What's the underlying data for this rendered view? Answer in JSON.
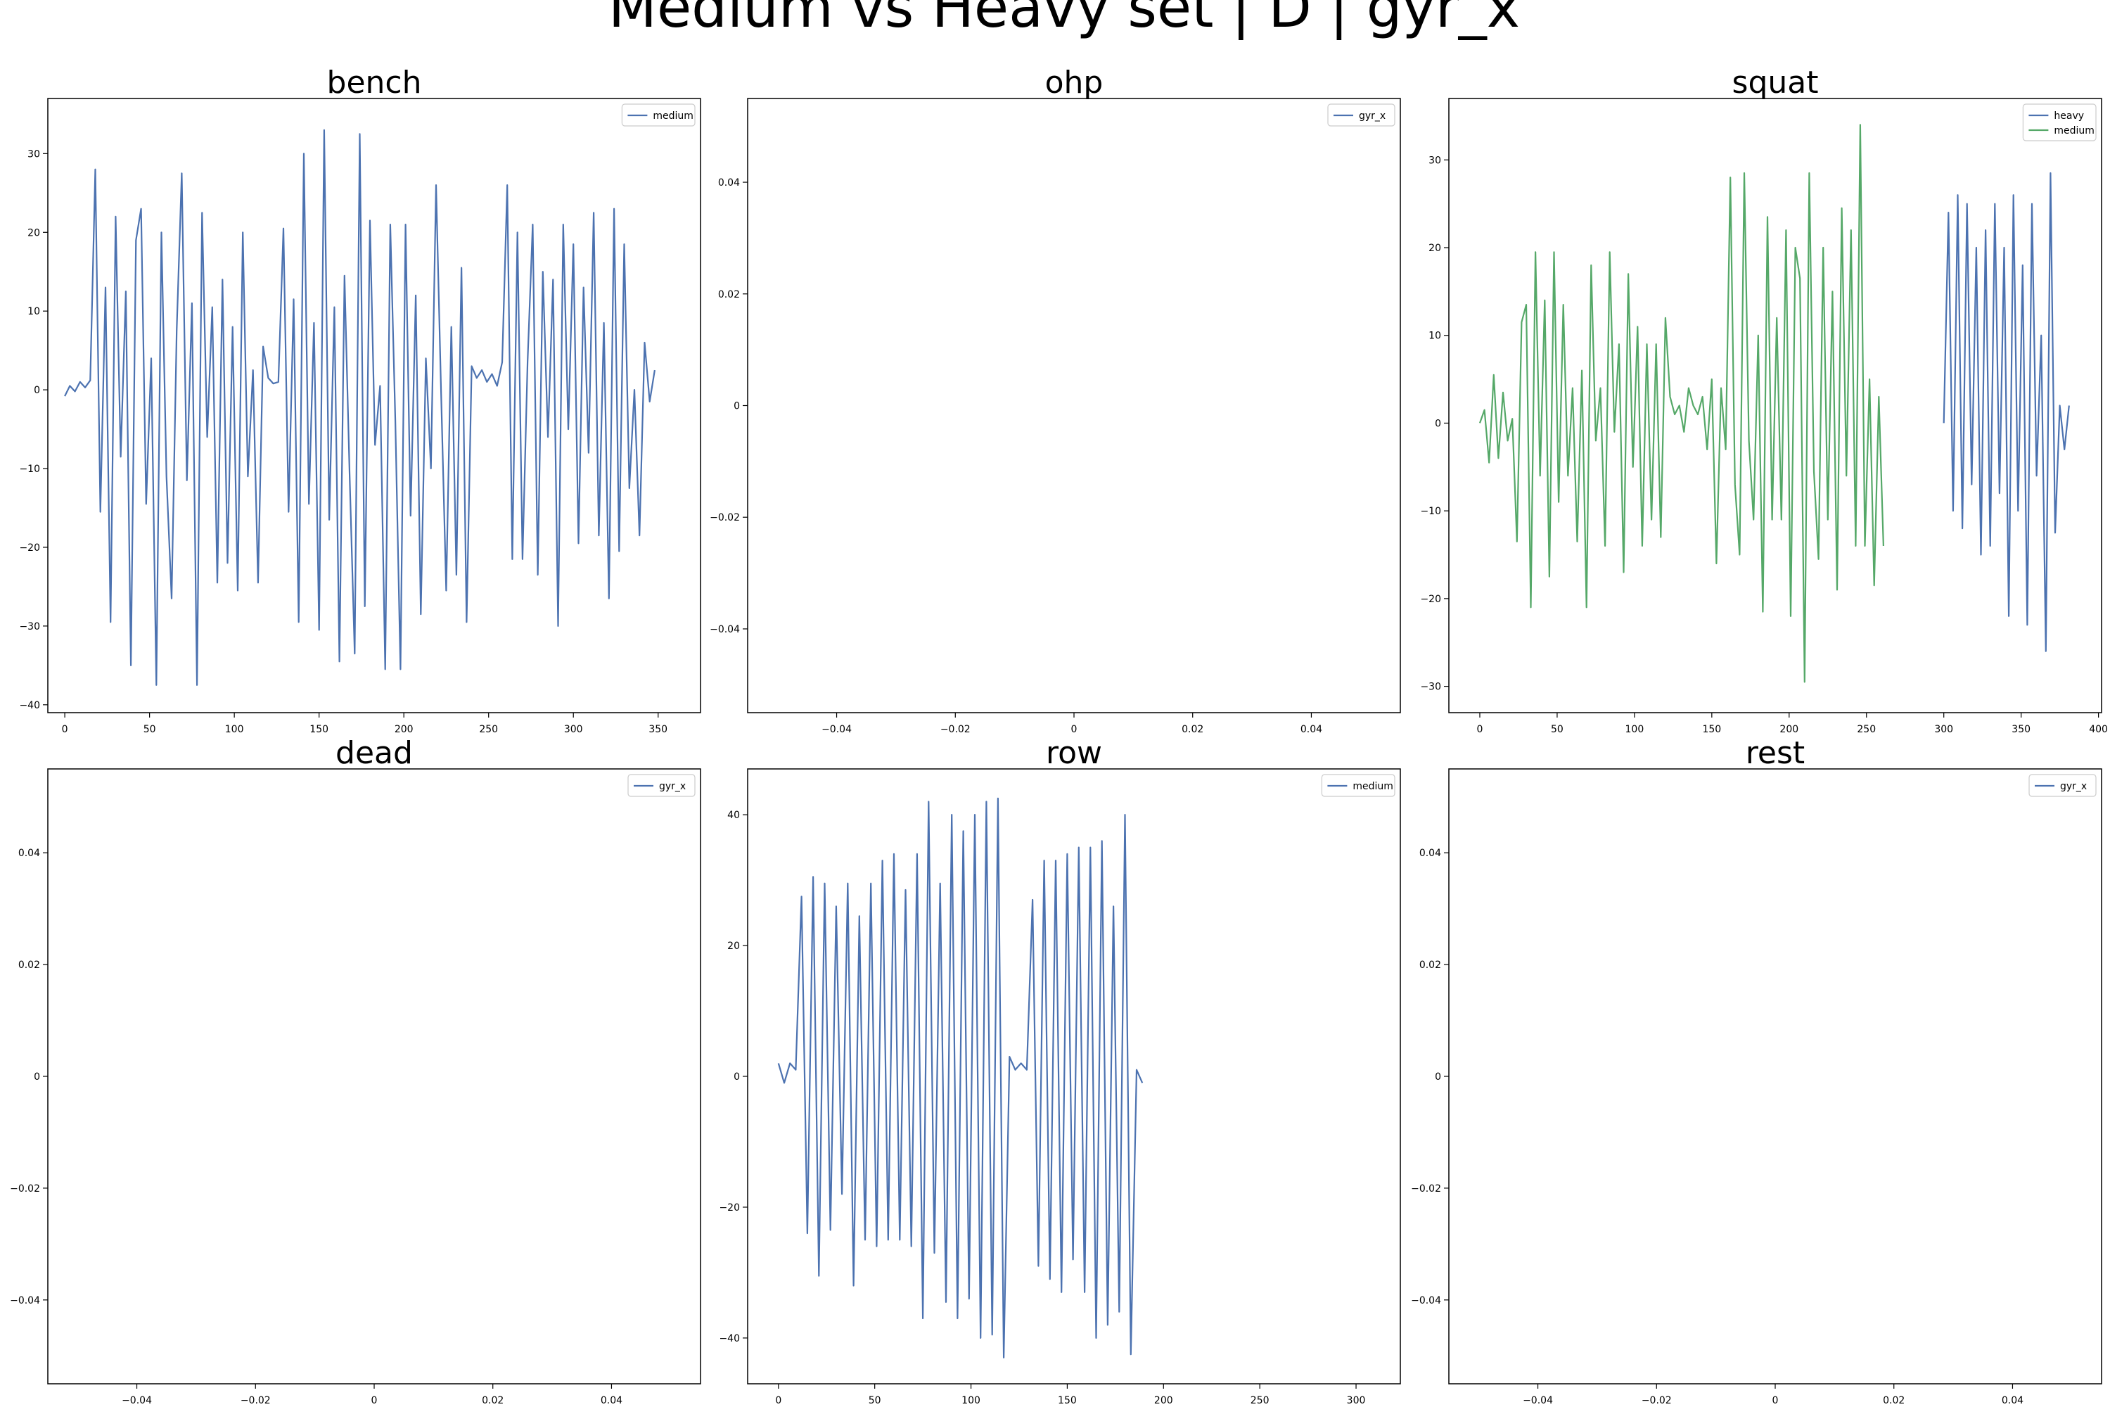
{
  "figure": {
    "title": "Medium vs Heavy set | D | gyr_x"
  },
  "colors": {
    "heavy": "#4c72b0",
    "medium": "#55a868",
    "axis": "#000000",
    "background": "#ffffff"
  },
  "chart_data": [
    {
      "name": "bench",
      "title": "bench",
      "type": "line",
      "grid": false,
      "legend_position": "top-right",
      "xlim": [
        -10,
        375
      ],
      "ylim": [
        -41,
        37
      ],
      "xticks": [
        0,
        50,
        100,
        150,
        200,
        250,
        300,
        350
      ],
      "yticks": [
        -40,
        -30,
        -20,
        -10,
        0,
        10,
        20,
        30
      ],
      "series": [
        {
          "name": "medium",
          "color": "#4c72b0",
          "x_start": 0,
          "x_step": 3,
          "values": [
            -0.8,
            0.5,
            -0.2,
            1.0,
            0.3,
            1.2,
            28,
            -15.5,
            13,
            -29.5,
            22,
            -8.5,
            12.5,
            -35,
            19,
            23,
            -14.5,
            4,
            -37.5,
            20,
            -11,
            -26.5,
            7.5,
            27.5,
            -11.5,
            11,
            -37.5,
            22.5,
            -6,
            10.5,
            -24.5,
            14,
            -22,
            8,
            -25.5,
            20,
            -11,
            2.5,
            -24.5,
            5.5,
            1.5,
            0.8,
            1.0,
            20.5,
            -15.5,
            11.5,
            -29.5,
            30,
            -14.5,
            8.5,
            -30.5,
            33,
            -16.5,
            10.5,
            -34.5,
            14.5,
            -10.5,
            -33.5,
            32.5,
            -27.5,
            21.5,
            -7,
            0.5,
            -35.5,
            21,
            -4,
            -35.5,
            21,
            -16,
            12,
            -28.5,
            4,
            -10,
            26,
            -0.5,
            -25.5,
            8,
            -23.5,
            15.5,
            -29.5,
            3,
            1.5,
            2.5,
            1.0,
            2.0,
            0.5,
            3.5,
            26,
            -21.5,
            20,
            -21.5,
            3.5,
            21,
            -23.5,
            15,
            -6,
            14,
            -30,
            21,
            -5,
            18.5,
            -19.5,
            13,
            -8,
            22.5,
            -18.5,
            8.5,
            -26.5,
            23,
            -20.5,
            18.5,
            -12.5,
            0,
            -18.5,
            6,
            -1.5,
            2.5
          ]
        }
      ]
    },
    {
      "name": "ohp",
      "title": "ohp",
      "type": "line",
      "grid": false,
      "legend_position": "top-right",
      "xlim": [
        -0.055,
        0.055
      ],
      "ylim": [
        -0.055,
        0.055
      ],
      "xticks": [
        -0.04,
        -0.02,
        0.0,
        0.02,
        0.04
      ],
      "yticks": [
        -0.04,
        -0.02,
        0.0,
        0.02,
        0.04
      ],
      "series": [
        {
          "name": "gyr_x",
          "color": "#4c72b0",
          "values": []
        }
      ]
    },
    {
      "name": "squat",
      "title": "squat",
      "type": "line",
      "grid": false,
      "legend_position": "top-right",
      "xlim": [
        -20,
        402
      ],
      "ylim": [
        -33,
        37
      ],
      "xticks": [
        0,
        50,
        100,
        150,
        200,
        250,
        300,
        350,
        400
      ],
      "yticks": [
        -30,
        -20,
        -10,
        0,
        10,
        20,
        30
      ],
      "series": [
        {
          "name": "heavy",
          "color": "#4c72b0",
          "x_start": 300,
          "x_step": 3,
          "values": [
            0,
            24,
            -10,
            26,
            -12,
            25,
            -7,
            20,
            -15,
            22,
            -14,
            25,
            -8,
            20,
            -22,
            26,
            -10,
            18,
            -23,
            25,
            -6,
            10,
            -26,
            28.5,
            -12.5,
            2,
            -3,
            2
          ]
        },
        {
          "name": "medium",
          "color": "#55a868",
          "x_start": 0,
          "x_step": 3,
          "values": [
            0,
            1.5,
            -4.5,
            5.5,
            -4,
            3.5,
            -2,
            0.5,
            -13.5,
            11.5,
            13.5,
            -21,
            19.5,
            -6,
            14,
            -17.5,
            19.5,
            -9,
            13.5,
            -6,
            4,
            -13.5,
            6,
            -21,
            18,
            -2,
            4,
            -14,
            19.5,
            -1,
            9,
            -17,
            17,
            -5,
            11,
            -14,
            9,
            -11,
            9,
            -13,
            12,
            3,
            1,
            2,
            -1,
            4,
            2,
            1,
            3,
            -3,
            5,
            -16,
            4,
            -3,
            28,
            -7,
            -15,
            28.5,
            -2,
            -11,
            10,
            -21.5,
            23.5,
            -11,
            12,
            -11,
            22,
            -22,
            20,
            16.5,
            -29.5,
            28.5,
            -5.5,
            -15.5,
            20,
            -11,
            15,
            -19,
            24.5,
            -6,
            22,
            -14,
            34,
            -14,
            5,
            -18.5,
            3,
            -14
          ]
        }
      ]
    },
    {
      "name": "dead",
      "title": "dead",
      "type": "line",
      "grid": false,
      "legend_position": "top-right",
      "xlim": [
        -0.055,
        0.055
      ],
      "ylim": [
        -0.055,
        0.055
      ],
      "xticks": [
        -0.04,
        -0.02,
        0.0,
        0.02,
        0.04
      ],
      "yticks": [
        -0.04,
        -0.02,
        0.0,
        0.02,
        0.04
      ],
      "series": [
        {
          "name": "gyr_x",
          "color": "#4c72b0",
          "values": []
        }
      ]
    },
    {
      "name": "row",
      "title": "row",
      "type": "line",
      "grid": false,
      "legend_position": "top-right",
      "xlim": [
        -16,
        323
      ],
      "ylim": [
        -47,
        47
      ],
      "xticks": [
        0,
        50,
        100,
        150,
        200,
        250,
        300
      ],
      "yticks": [
        -40,
        -20,
        0,
        20,
        40
      ],
      "series": [
        {
          "name": "medium",
          "color": "#4c72b0",
          "x_start": 0,
          "x_step": 3,
          "values": [
            2,
            -1,
            2,
            1,
            27.5,
            -24,
            30.5,
            -30.5,
            29.5,
            -23.5,
            26,
            -18,
            29.5,
            -32,
            24.5,
            -25,
            29.5,
            -26,
            33,
            -25,
            34,
            -25,
            28.5,
            -26,
            34,
            -37,
            42,
            -27,
            29.5,
            -34.5,
            40,
            -37,
            37.5,
            -34,
            40,
            -40,
            42,
            -39.5,
            42.5,
            -43,
            3,
            1,
            2,
            1,
            27,
            -29,
            33,
            -31,
            33,
            -33,
            34,
            -28,
            35,
            -33,
            35,
            -40,
            36,
            -38,
            26,
            -36,
            40,
            -42.5,
            1,
            -1
          ]
        }
      ]
    },
    {
      "name": "rest",
      "title": "rest",
      "type": "line",
      "grid": false,
      "legend_position": "top-right",
      "xlim": [
        -0.055,
        0.055
      ],
      "ylim": [
        -0.055,
        0.055
      ],
      "xticks": [
        -0.04,
        -0.02,
        0.0,
        0.02,
        0.04
      ],
      "yticks": [
        -0.04,
        -0.02,
        0.0,
        0.02,
        0.04
      ],
      "series": [
        {
          "name": "gyr_x",
          "color": "#4c72b0",
          "values": []
        }
      ]
    }
  ]
}
